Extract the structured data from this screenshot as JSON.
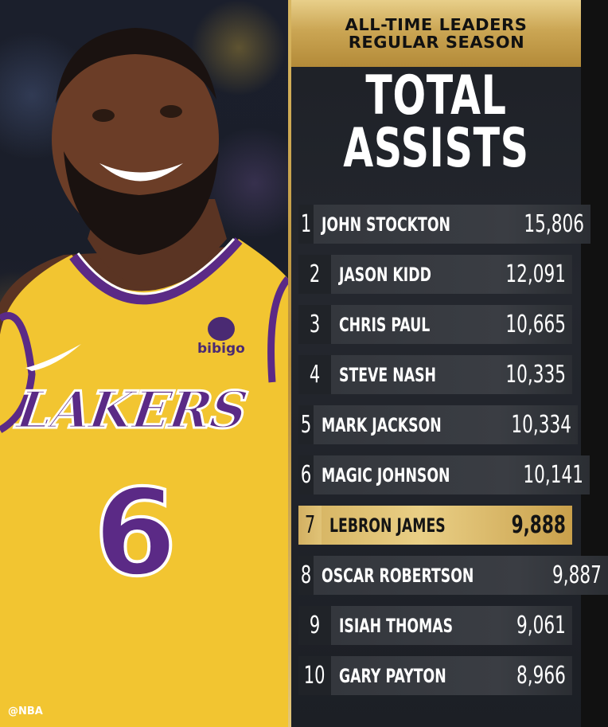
{
  "header": {
    "line1": "ALL-TIME LEADERS",
    "line2": "REGULAR SEASON"
  },
  "title": {
    "line1": "TOTAL",
    "line2": "ASSISTS"
  },
  "leaders": [
    {
      "rank": "1",
      "name": "JOHN STOCKTON",
      "value": "15,806",
      "highlighted": false
    },
    {
      "rank": "2",
      "name": "JASON KIDD",
      "value": "12,091",
      "highlighted": false
    },
    {
      "rank": "3",
      "name": "CHRIS PAUL",
      "value": "10,665",
      "highlighted": false
    },
    {
      "rank": "4",
      "name": "STEVE NASH",
      "value": "10,335",
      "highlighted": false
    },
    {
      "rank": "5",
      "name": "MARK JACKSON",
      "value": "10,334",
      "highlighted": false
    },
    {
      "rank": "6",
      "name": "MAGIC JOHNSON",
      "value": "10,141",
      "highlighted": false
    },
    {
      "rank": "7",
      "name": "LEBRON JAMES",
      "value": "9,888",
      "highlighted": true
    },
    {
      "rank": "8",
      "name": "OSCAR ROBERTSON",
      "value": "9,887",
      "highlighted": false
    },
    {
      "rank": "9",
      "name": "ISIAH THOMAS",
      "value": "9,061",
      "highlighted": false
    },
    {
      "rank": "10",
      "name": "GARY PAYTON",
      "value": "8,966",
      "highlighted": false
    }
  ],
  "photo": {
    "jersey_team": "LAKERS",
    "jersey_number": "6",
    "sponsor": "bibigo"
  },
  "credit": "@NBA",
  "colors": {
    "gold": "#d8b766",
    "jersey_yellow": "#f2c531",
    "jersey_purple": "#5b2a86",
    "panel_dark": "#24272e"
  }
}
